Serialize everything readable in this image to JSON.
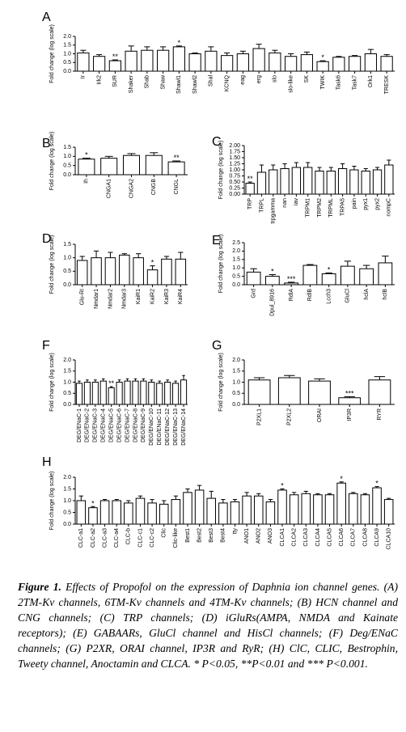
{
  "chart_data": [
    {
      "type": "bar",
      "panel": "A",
      "ylabel": "Fold change (log scale)",
      "categories": [
        "Ir",
        "Irk2",
        "SUR",
        "Shaker",
        "Shab",
        "Shaw",
        "Shawl1",
        "Shawl2",
        "Shal",
        "KCNQ",
        "eag",
        "erg",
        "slo",
        "slo-like",
        "SK",
        "TWIK",
        "Task6",
        "Task7",
        "Ork1",
        "TRESK"
      ],
      "values": [
        1.05,
        0.85,
        0.6,
        1.15,
        1.2,
        1.2,
        1.4,
        1.0,
        1.15,
        0.9,
        1.0,
        1.3,
        1.05,
        0.85,
        0.95,
        0.55,
        0.8,
        0.85,
        1.0,
        0.85
      ],
      "errors": [
        0.15,
        0.1,
        0.05,
        0.3,
        0.2,
        0.2,
        0.05,
        0.05,
        0.25,
        0.15,
        0.15,
        0.25,
        0.15,
        0.15,
        0.15,
        0.05,
        0.05,
        0.05,
        0.25,
        0.1
      ],
      "significance": [
        null,
        null,
        "**",
        null,
        null,
        null,
        "*",
        null,
        null,
        null,
        null,
        null,
        null,
        null,
        null,
        "*",
        null,
        null,
        null,
        null
      ],
      "ylim": [
        0,
        2
      ],
      "yticks": [
        {
          "value": 0,
          "label": "0.0"
        },
        {
          "value": 0.5,
          "label": "0.5"
        },
        {
          "value": 1,
          "label": "1.0"
        },
        {
          "value": 1.5,
          "label": "1.5"
        },
        {
          "value": 2,
          "label": "2.0"
        }
      ]
    },
    {
      "type": "bar",
      "panel": "B",
      "ylabel": "Fold change (log scale)",
      "categories": [
        "Ih",
        "CNGA1",
        "CNGA2",
        "CNGB",
        "CNGL"
      ],
      "values": [
        0.85,
        0.9,
        1.05,
        1.05,
        0.7
      ],
      "errors": [
        0.05,
        0.1,
        0.1,
        0.15,
        0.05
      ],
      "significance": [
        "*",
        null,
        null,
        null,
        "**"
      ],
      "ylim": [
        0,
        1.5
      ],
      "yticks": [
        {
          "value": 0,
          "label": "0.0"
        },
        {
          "value": 0.5,
          "label": "0.5"
        },
        {
          "value": 1,
          "label": "1.0"
        },
        {
          "value": 1.5,
          "label": "1.5"
        }
      ]
    },
    {
      "type": "bar",
      "panel": "C",
      "ylabel": "Fold change (log scale)",
      "categories": [
        "TRP",
        "TRPL",
        "trpgamma",
        "nan",
        "iav",
        "TRPM1",
        "TRPM2",
        "TRPML",
        "TRPA5",
        "pain",
        "pyx1",
        "pyx2",
        "nompC"
      ],
      "values": [
        0.45,
        0.9,
        1.0,
        1.05,
        1.1,
        1.1,
        0.95,
        0.95,
        1.05,
        1.0,
        0.95,
        1.0,
        1.2
      ],
      "errors": [
        0.05,
        0.3,
        0.2,
        0.2,
        0.2,
        0.2,
        0.15,
        0.15,
        0.2,
        0.15,
        0.1,
        0.1,
        0.2
      ],
      "significance": [
        "**",
        null,
        null,
        null,
        null,
        null,
        null,
        null,
        null,
        null,
        null,
        null,
        null
      ],
      "ylim": [
        0,
        2
      ],
      "yticks": [
        {
          "value": 0,
          "label": "0.00"
        },
        {
          "value": 0.25,
          "label": "0.25"
        },
        {
          "value": 0.5,
          "label": "0.50"
        },
        {
          "value": 0.75,
          "label": "0.75"
        },
        {
          "value": 1,
          "label": "1.00"
        },
        {
          "value": 1.25,
          "label": "1.25"
        },
        {
          "value": 1.5,
          "label": "1.50"
        },
        {
          "value": 1.75,
          "label": "1.75"
        },
        {
          "value": 2,
          "label": "2.00"
        }
      ]
    },
    {
      "type": "bar",
      "panel": "D",
      "ylabel": "Fold change (log scale)",
      "categories": [
        "Glu-RI",
        "Nmdar1",
        "Nmdar2",
        "Nmdar3",
        "KaiR1",
        "KaiR2",
        "KaiR3",
        "KaiR4"
      ],
      "values": [
        0.9,
        1.0,
        1.0,
        1.1,
        1.0,
        0.55,
        0.95,
        0.95
      ],
      "errors": [
        0.15,
        0.25,
        0.2,
        0.05,
        0.15,
        0.15,
        0.1,
        0.25
      ],
      "significance": [
        null,
        null,
        null,
        null,
        null,
        "*",
        null,
        null
      ],
      "ylim": [
        0,
        1.5
      ],
      "yticks": [
        {
          "value": 0,
          "label": "0.0"
        },
        {
          "value": 0.5,
          "label": "0.5"
        },
        {
          "value": 1,
          "label": "1.0"
        },
        {
          "value": 1.5,
          "label": "1.5"
        }
      ]
    },
    {
      "type": "bar",
      "panel": "E",
      "ylabel": "Fold change (log scale)",
      "categories": [
        "Grd",
        "Dpul_8916",
        "RdlA",
        "RdlB",
        "Lcch3",
        "GluCl",
        "hclA",
        "hclB"
      ],
      "values": [
        0.75,
        0.5,
        0.1,
        1.15,
        0.65,
        1.1,
        0.95,
        1.3
      ],
      "errors": [
        0.2,
        0.1,
        0.05,
        0.05,
        0.05,
        0.3,
        0.2,
        0.4
      ],
      "significance": [
        null,
        "*",
        "***",
        null,
        "*",
        null,
        null,
        null
      ],
      "ylim": [
        0,
        2.5
      ],
      "yticks": [
        {
          "value": 0,
          "label": "0.0"
        },
        {
          "value": 0.5,
          "label": "0.5"
        },
        {
          "value": 1,
          "label": "1.0"
        },
        {
          "value": 1.5,
          "label": "1.5"
        },
        {
          "value": 2,
          "label": "2.0"
        },
        {
          "value": 2.5,
          "label": "2.5"
        }
      ]
    },
    {
      "type": "bar",
      "panel": "F",
      "ylabel": "Fold change (log scale)",
      "categories": [
        "DEG/ENaC-1",
        "DEG/ENaC-2",
        "DEG/ENaC-3",
        "DEG/ENaC-4",
        "DEG/ENaC-5",
        "DEG/ENaC-6",
        "DEG/ENaC-7",
        "DEG/ENaC-8",
        "DEG/ENaC-9",
        "DEG/ENaC-10",
        "DEG/ENaC-11",
        "DEG/ENaC-12",
        "DEG/ENaC-13",
        "DEG/ENaC-14"
      ],
      "values": [
        0.95,
        1.0,
        1.0,
        1.05,
        0.75,
        1.0,
        1.05,
        1.05,
        1.05,
        1.0,
        0.95,
        1.0,
        0.95,
        1.1
      ],
      "errors": [
        0.1,
        0.1,
        0.1,
        0.1,
        0.05,
        0.1,
        0.1,
        0.1,
        0.1,
        0.1,
        0.1,
        0.1,
        0.1,
        0.2
      ],
      "significance": [
        null,
        null,
        null,
        null,
        "**",
        null,
        null,
        null,
        null,
        null,
        null,
        null,
        null,
        null
      ],
      "ylim": [
        0,
        2
      ],
      "yticks": [
        {
          "value": 0,
          "label": "0.0"
        },
        {
          "value": 0.5,
          "label": "0.5"
        },
        {
          "value": 1,
          "label": "1.0"
        },
        {
          "value": 1.5,
          "label": "1.5"
        },
        {
          "value": 2,
          "label": "2.0"
        }
      ]
    },
    {
      "type": "bar",
      "panel": "G",
      "ylabel": "Fold change (log scale)",
      "categories": [
        "P2XL1",
        "P2XL2",
        "ORAI",
        "IP3R",
        "RYR"
      ],
      "values": [
        1.1,
        1.2,
        1.05,
        0.3,
        1.1
      ],
      "errors": [
        0.1,
        0.1,
        0.1,
        0.05,
        0.15
      ],
      "significance": [
        null,
        null,
        null,
        "***",
        null
      ],
      "ylim": [
        0,
        2
      ],
      "yticks": [
        {
          "value": 0,
          "label": "0.0"
        },
        {
          "value": 0.5,
          "label": "0.5"
        },
        {
          "value": 1,
          "label": "1.0"
        },
        {
          "value": 1.5,
          "label": "1.5"
        },
        {
          "value": 2,
          "label": "2.0"
        }
      ]
    },
    {
      "type": "bar",
      "panel": "H",
      "ylabel": "Fold change (log scale)",
      "categories": [
        "CLC-a1",
        "CLC-a2",
        "CLC-a3",
        "CLC-a4",
        "CLC-b",
        "CLC-c1",
        "CLC-c2",
        "Clic",
        "Clic-like",
        "Best1",
        "Best2",
        "Best3",
        "Best4",
        "tty",
        "ANO1",
        "ANO2",
        "ANO3",
        "CLCA1",
        "CLCA2",
        "CLCA3",
        "CLCA4",
        "CLCA5",
        "CLCA6",
        "CLCA7",
        "CLCA8",
        "CLCA9",
        "CLCA10"
      ],
      "values": [
        1.0,
        0.7,
        1.0,
        1.0,
        0.9,
        1.1,
        0.9,
        0.85,
        1.05,
        1.35,
        1.45,
        1.1,
        0.9,
        0.95,
        1.2,
        1.2,
        0.95,
        1.45,
        1.25,
        1.3,
        1.25,
        1.25,
        1.75,
        1.3,
        1.25,
        1.55,
        1.05
      ],
      "errors": [
        0.2,
        0.05,
        0.05,
        0.05,
        0.1,
        0.1,
        0.15,
        0.15,
        0.15,
        0.15,
        0.2,
        0.3,
        0.15,
        0.1,
        0.15,
        0.1,
        0.1,
        0.05,
        0.1,
        0.1,
        0.05,
        0.05,
        0.05,
        0.05,
        0.05,
        0.05,
        0.05
      ],
      "significance": [
        null,
        "*",
        null,
        null,
        null,
        null,
        null,
        null,
        null,
        null,
        null,
        null,
        null,
        null,
        null,
        null,
        null,
        "*",
        null,
        null,
        null,
        null,
        "*",
        null,
        null,
        "*",
        null
      ],
      "ylim": [
        0,
        2
      ],
      "yticks": [
        {
          "value": 0,
          "label": "0.0"
        },
        {
          "value": 0.5,
          "label": "0.5"
        },
        {
          "value": 1,
          "label": "1.0"
        },
        {
          "value": 1.5,
          "label": "1.5"
        },
        {
          "value": 2,
          "label": "2.0"
        }
      ]
    }
  ],
  "caption": {
    "label": "Figure 1.",
    "text": "Effects of Propofol on the expression of Daphnia ion channel genes. (A) 2TM-Kv channels, 6TM-Kv channels and 4TM-Kv channels; (B) HCN channel and CNG channels; (C) TRP channels; (D) iGluRs(AMPA, NMDA and Kainate receptors); (E) GABAARs, GluCl channel and HisCl channels; (F) Deg/ENaC channels; (G) P2XR, ORAI channel, IP3R and RyR; (H) ClC, CLIC, Bestrophin, Tweety channel, Anoctamin and CLCA. * P<0.05, **P<0.01 and *** P<0.001."
  }
}
